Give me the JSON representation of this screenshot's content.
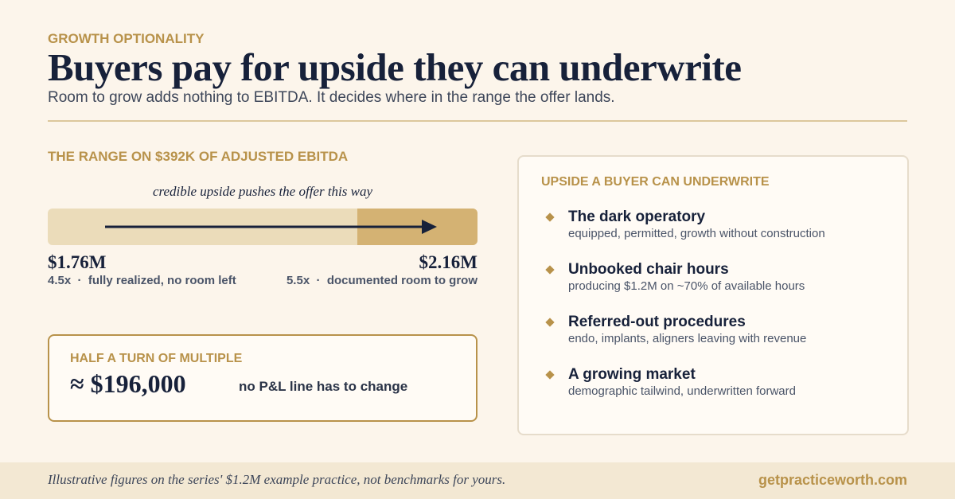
{
  "header": {
    "eyebrow": "GROWTH OPTIONALITY",
    "title": "Buyers pay for upside they can underwrite",
    "subtitle": "Room to grow adds nothing to EBITDA. It decides where in the range the offer lands."
  },
  "range": {
    "heading": "THE RANGE ON $392K OF ADJUSTED EBITDA",
    "caption": "credible upside pushes the offer this way",
    "low": {
      "value": "$1.76M",
      "note": "4.5x  ·  fully realized, no room left"
    },
    "high": {
      "value": "$2.16M",
      "note": "5.5x  ·  documented room to grow"
    }
  },
  "callout": {
    "heading": "HALF A TURN OF MULTIPLE",
    "value": "≈ $196,000",
    "note": "no P&L line has to change"
  },
  "upside": {
    "heading": "UPSIDE A BUYER CAN UNDERWRITE",
    "items": [
      {
        "title": "The dark operatory",
        "detail": "equipped, permitted, growth without construction"
      },
      {
        "title": "Unbooked chair hours",
        "detail": "producing $1.2M on ~70% of available hours"
      },
      {
        "title": "Referred-out procedures",
        "detail": "endo, implants, aligners leaving with revenue"
      },
      {
        "title": "A growing market",
        "detail": "demographic tailwind, underwritten forward"
      }
    ]
  },
  "footer": {
    "note": "Illustrative figures on the series' $1.2M example practice, not benchmarks for yours.",
    "url": "getpracticeworth.com"
  }
}
